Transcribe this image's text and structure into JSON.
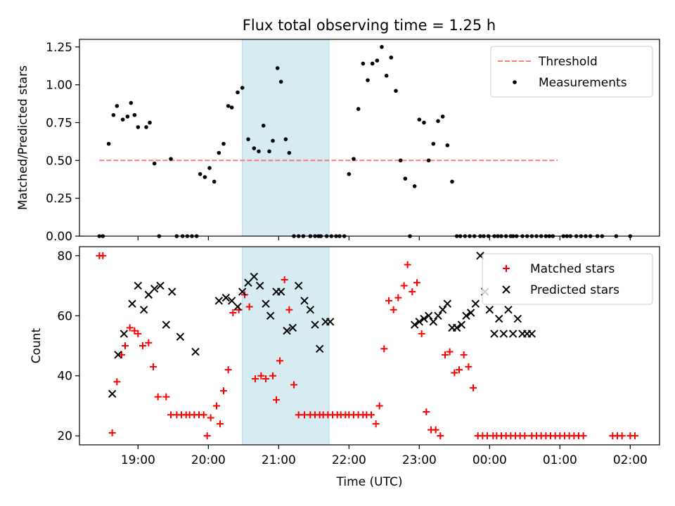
{
  "figure": {
    "title": "Flux total observing time = 1.25 h"
  },
  "chart_data": [
    {
      "type": "scatter",
      "ylabel": "Matched/Predicted stars",
      "ylim": [
        0,
        1.3
      ],
      "yticks": [
        "0.00",
        "0.25",
        "0.50",
        "0.75",
        "1.00",
        "1.25"
      ],
      "ytick_values": [
        0,
        0.25,
        0.5,
        0.75,
        1.0,
        1.25
      ],
      "xlim": [
        "18:10",
        "02:25"
      ],
      "shaded_interval": {
        "start": "20:29",
        "end": "21:43"
      },
      "legend_position": "upper-right",
      "threshold": {
        "name": "Threshold",
        "value": 0.5,
        "x_start": "18:27",
        "x_end": "00:58",
        "color": "#ff6666",
        "style": "dashed"
      },
      "series": [
        {
          "name": "Measurements",
          "color": "#000000",
          "marker": "dot",
          "x": [
            "18:27",
            "18:30",
            "18:35",
            "18:39",
            "18:42",
            "18:47",
            "18:51",
            "18:54",
            "18:57",
            "19:00",
            "19:07",
            "19:10",
            "19:14",
            "19:18",
            "19:28",
            "19:33",
            "19:38",
            "19:42",
            "19:46",
            "19:50",
            "19:53",
            "19:57",
            "20:01",
            "20:05",
            "20:09",
            "20:13",
            "20:17",
            "20:20",
            "20:25",
            "20:29",
            "20:34",
            "20:39",
            "20:43",
            "20:47",
            "20:52",
            "20:55",
            "20:59",
            "21:02",
            "21:06",
            "21:09",
            "21:13",
            "21:17",
            "21:21",
            "21:27",
            "21:31",
            "21:34",
            "21:36",
            "21:41",
            "21:45",
            "21:49",
            "21:52",
            "21:56",
            "22:00",
            "22:04",
            "22:08",
            "22:12",
            "22:16",
            "22:20",
            "22:24",
            "22:28",
            "22:32",
            "22:36",
            "22:40",
            "22:44",
            "22:48",
            "22:52",
            "22:56",
            "23:00",
            "23:04",
            "23:08",
            "23:12",
            "23:16",
            "23:20",
            "23:24",
            "23:28",
            "23:32",
            "23:35",
            "23:39",
            "23:43",
            "23:47",
            "23:52",
            "23:55",
            "23:59",
            "00:04",
            "00:07",
            "00:10",
            "00:14",
            "00:18",
            "00:20",
            "00:23",
            "00:28",
            "00:32",
            "00:36",
            "00:40",
            "00:44",
            "00:48",
            "00:51",
            "00:54",
            "01:03",
            "01:06",
            "01:09",
            "01:14",
            "01:18",
            "01:22",
            "01:26",
            "01:32",
            "01:36",
            "01:48",
            "02:00"
          ],
          "y": [
            0.0,
            0.0,
            0.61,
            0.8,
            0.86,
            0.77,
            0.79,
            0.88,
            0.8,
            0.72,
            0.72,
            0.75,
            0.48,
            0.0,
            0.51,
            0.0,
            0.0,
            0.0,
            0.0,
            0.0,
            0.41,
            0.39,
            0.45,
            0.36,
            0.55,
            0.61,
            0.86,
            0.85,
            0.95,
            0.98,
            0.64,
            0.58,
            0.56,
            0.73,
            0.56,
            0.63,
            1.11,
            1.02,
            0.64,
            0.55,
            0.0,
            0.0,
            0.0,
            0.0,
            0.0,
            0.0,
            0.0,
            0.0,
            0.0,
            0.0,
            0.0,
            0.0,
            0.41,
            0.51,
            0.84,
            1.14,
            1.03,
            1.14,
            1.16,
            1.25,
            1.06,
            1.18,
            0.96,
            0.5,
            0.38,
            0.0,
            0.33,
            0.77,
            0.75,
            0.5,
            0.61,
            0.76,
            0.79,
            0.6,
            0.36,
            0.0,
            0.0,
            0.0,
            0.0,
            0.0,
            0.0,
            0.0,
            0.0,
            0.0,
            0.0,
            0.0,
            0.0,
            0.0,
            0.0,
            0.0,
            0.0,
            0.0,
            0.0,
            0.0,
            0.0,
            0.0,
            0.0,
            0.0,
            0.0,
            0.0,
            0.0,
            0.0,
            0.0,
            0.0,
            0.0,
            0.0,
            0.0,
            0.0,
            0.0
          ]
        }
      ]
    },
    {
      "type": "scatter",
      "xlabel": "Time (UTC)",
      "ylabel": "Count",
      "ylim": [
        17,
        83
      ],
      "yticks": [
        "20",
        "40",
        "60",
        "80"
      ],
      "ytick_values": [
        20,
        40,
        60,
        80
      ],
      "xlim": [
        "18:10",
        "02:25"
      ],
      "xticks": [
        "19:00",
        "20:00",
        "21:00",
        "22:00",
        "23:00",
        "00:00",
        "01:00",
        "02:00"
      ],
      "shaded_interval": {
        "start": "20:29",
        "end": "21:43"
      },
      "legend_position": "upper-right",
      "series": [
        {
          "name": "Matched stars",
          "color": "#ff0000",
          "marker": "plus",
          "x": [
            "18:27",
            "18:30",
            "18:38",
            "18:42",
            "18:46",
            "18:49",
            "18:53",
            "18:57",
            "19:00",
            "19:04",
            "19:09",
            "19:13",
            "19:17",
            "19:24",
            "19:28",
            "19:33",
            "19:37",
            "19:41",
            "19:44",
            "19:48",
            "19:52",
            "19:56",
            "19:59",
            "20:02",
            "20:07",
            "20:10",
            "20:13",
            "20:17",
            "20:21",
            "20:26",
            "20:31",
            "20:35",
            "20:40",
            "20:45",
            "20:49",
            "20:55",
            "20:58",
            "21:01",
            "21:05",
            "21:09",
            "21:13",
            "21:17",
            "21:22",
            "21:27",
            "21:31",
            "21:35",
            "21:38",
            "21:42",
            "21:46",
            "21:50",
            "21:53",
            "21:57",
            "22:00",
            "22:04",
            "22:08",
            "22:12",
            "22:15",
            "22:19",
            "22:23",
            "22:26",
            "22:30",
            "22:34",
            "22:38",
            "22:42",
            "22:47",
            "22:50",
            "22:54",
            "22:58",
            "23:02",
            "23:06",
            "23:10",
            "23:14",
            "23:18",
            "23:22",
            "23:26",
            "23:30",
            "23:34",
            "23:38",
            "23:42",
            "23:46",
            "23:50",
            "23:54",
            "23:58",
            "00:03",
            "00:06",
            "00:10",
            "00:14",
            "00:18",
            "00:22",
            "00:26",
            "00:30",
            "00:36",
            "00:40",
            "00:44",
            "00:48",
            "00:52",
            "00:56",
            "01:00",
            "01:04",
            "01:08",
            "01:12",
            "01:16",
            "01:20",
            "01:45",
            "01:49",
            "01:53",
            "02:00",
            "02:04"
          ],
          "y": [
            80,
            80,
            21,
            38,
            47,
            50,
            56,
            55,
            54,
            50,
            51,
            43,
            33,
            33,
            27,
            27,
            27,
            27,
            27,
            27,
            27,
            27,
            20,
            26,
            30,
            24,
            35,
            42,
            61,
            62,
            67,
            63,
            39,
            40,
            39,
            40,
            32,
            45,
            72,
            62,
            37,
            27,
            27,
            27,
            27,
            27,
            27,
            27,
            27,
            27,
            27,
            27,
            27,
            27,
            27,
            27,
            27,
            27,
            24,
            30,
            49,
            65,
            62,
            66,
            70,
            77,
            68,
            71,
            54,
            28,
            22,
            22,
            20,
            47,
            48,
            41,
            42,
            47,
            43,
            36,
            20,
            20,
            20,
            20,
            20,
            20,
            20,
            20,
            20,
            20,
            20,
            20,
            20,
            20,
            20,
            20,
            20,
            20,
            20,
            20,
            20,
            20,
            20,
            20,
            20,
            20,
            20,
            20
          ]
        },
        {
          "name": "Predicted stars",
          "color": "#000000",
          "marker": "x",
          "x": [
            "18:38",
            "18:43",
            "18:48",
            "18:55",
            "19:00",
            "19:05",
            "19:09",
            "19:14",
            "19:19",
            "19:24",
            "19:29",
            "19:36",
            "19:49",
            "20:09",
            "20:15",
            "20:20",
            "20:25",
            "20:29",
            "20:34",
            "20:39",
            "20:44",
            "20:49",
            "20:53",
            "20:58",
            "21:02",
            "21:07",
            "21:12",
            "21:17",
            "21:22",
            "21:27",
            "21:31",
            "21:35",
            "21:40",
            "21:44",
            "22:56",
            "23:00",
            "23:04",
            "23:08",
            "23:12",
            "23:16",
            "23:20",
            "23:24",
            "23:28",
            "23:32",
            "23:36",
            "23:40",
            "23:44",
            "23:48",
            "23:52",
            "23:56",
            "00:00",
            "00:04",
            "00:08",
            "00:12",
            "00:16",
            "00:20",
            "00:24",
            "00:28",
            "00:32",
            "00:36"
          ],
          "y": [
            34,
            47,
            54,
            64,
            70,
            62,
            67,
            69,
            70,
            57,
            68,
            53,
            48,
            65,
            66,
            65,
            63,
            68,
            71,
            73,
            70,
            64,
            60,
            68,
            68,
            55,
            56,
            70,
            65,
            62,
            57,
            49,
            58,
            58,
            57,
            58,
            59,
            60,
            58,
            60,
            62,
            64,
            56,
            56,
            57,
            60,
            61,
            64,
            80,
            68,
            62,
            54,
            59,
            54,
            62,
            54,
            59,
            54,
            54,
            54
          ]
        }
      ]
    }
  ]
}
